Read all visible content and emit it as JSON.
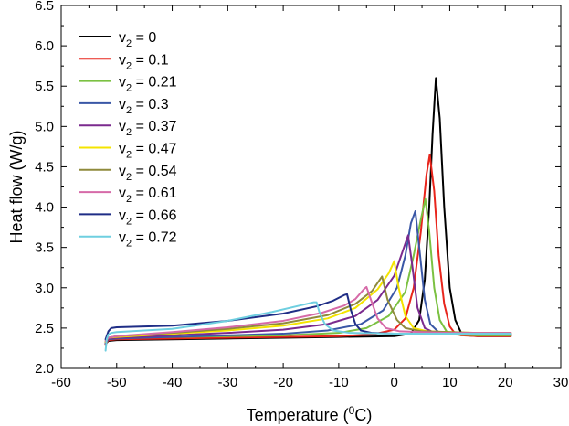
{
  "chart_data": {
    "type": "line",
    "title": "",
    "xlabel": {
      "pre": "Temperature (",
      "sup": "0",
      "post": "C)"
    },
    "ylabel": "Heat flow (W/g)",
    "xlim": [
      -60,
      30
    ],
    "ylim": [
      2.0,
      6.5
    ],
    "xticks": [
      -60,
      -50,
      -40,
      -30,
      -20,
      -10,
      0,
      10,
      20,
      30
    ],
    "yticks": [
      2.0,
      2.5,
      3.0,
      3.5,
      4.0,
      4.5,
      5.0,
      5.5,
      6.0,
      6.5
    ],
    "grid": false,
    "legend_position": "top-left",
    "series": [
      {
        "name": "v2 = 0",
        "label_main": "v",
        "label_sub": "2",
        "label_rest": " = 0",
        "color": "#000000",
        "points": [
          [
            -52,
            2.3
          ],
          [
            -51.5,
            2.34
          ],
          [
            -50,
            2.35
          ],
          [
            -40,
            2.36
          ],
          [
            -30,
            2.37
          ],
          [
            -20,
            2.38
          ],
          [
            -10,
            2.39
          ],
          [
            0,
            2.4
          ],
          [
            3,
            2.43
          ],
          [
            4.5,
            2.6
          ],
          [
            5.5,
            3.1
          ],
          [
            6.3,
            4.0
          ],
          [
            6.9,
            4.9
          ],
          [
            7.5,
            5.6
          ],
          [
            8.2,
            5.1
          ],
          [
            9,
            4.0
          ],
          [
            10,
            3.0
          ],
          [
            11,
            2.6
          ],
          [
            12,
            2.45
          ],
          [
            13,
            2.41
          ],
          [
            15,
            2.4
          ],
          [
            21,
            2.4
          ]
        ]
      },
      {
        "name": "v2 = 0.1",
        "label_main": "v",
        "label_sub": "2",
        "label_rest": " = 0.1",
        "color": "#e8251c",
        "points": [
          [
            -52,
            2.3
          ],
          [
            -51.5,
            2.35
          ],
          [
            -50,
            2.36
          ],
          [
            -40,
            2.37
          ],
          [
            -30,
            2.38
          ],
          [
            -20,
            2.39
          ],
          [
            -10,
            2.4
          ],
          [
            -4,
            2.42
          ],
          [
            0,
            2.48
          ],
          [
            2,
            2.62
          ],
          [
            3.5,
            3.0
          ],
          [
            4.8,
            3.7
          ],
          [
            5.8,
            4.4
          ],
          [
            6.4,
            4.65
          ],
          [
            7.2,
            4.2
          ],
          [
            8,
            3.4
          ],
          [
            9,
            2.8
          ],
          [
            10,
            2.52
          ],
          [
            11,
            2.43
          ],
          [
            12,
            2.41
          ],
          [
            15,
            2.4
          ],
          [
            21,
            2.4
          ]
        ]
      },
      {
        "name": "v2 = 0.21",
        "label_main": "v",
        "label_sub": "2",
        "label_rest": " = 0.21",
        "color": "#7bc142",
        "points": [
          [
            -52,
            2.32
          ],
          [
            -51.5,
            2.37
          ],
          [
            -50,
            2.38
          ],
          [
            -40,
            2.39
          ],
          [
            -30,
            2.4
          ],
          [
            -20,
            2.41
          ],
          [
            -10,
            2.44
          ],
          [
            -5,
            2.5
          ],
          [
            -1,
            2.65
          ],
          [
            2,
            2.95
          ],
          [
            3.5,
            3.4
          ],
          [
            4.8,
            3.85
          ],
          [
            5.6,
            4.1
          ],
          [
            6.3,
            3.7
          ],
          [
            7.2,
            3.0
          ],
          [
            8.2,
            2.6
          ],
          [
            9.5,
            2.45
          ],
          [
            11,
            2.42
          ],
          [
            15,
            2.41
          ],
          [
            21,
            2.41
          ]
        ]
      },
      {
        "name": "v2 = 0.3",
        "label_main": "v",
        "label_sub": "2",
        "label_rest": " = 0.3",
        "color": "#3a57a6",
        "points": [
          [
            -52,
            2.31
          ],
          [
            -51.5,
            2.36
          ],
          [
            -50,
            2.37
          ],
          [
            -40,
            2.39
          ],
          [
            -30,
            2.41
          ],
          [
            -20,
            2.43
          ],
          [
            -12,
            2.47
          ],
          [
            -6,
            2.55
          ],
          [
            -2,
            2.72
          ],
          [
            0.5,
            3.0
          ],
          [
            2,
            3.4
          ],
          [
            3,
            3.8
          ],
          [
            3.8,
            3.95
          ],
          [
            4.5,
            3.5
          ],
          [
            5.5,
            2.85
          ],
          [
            6.5,
            2.55
          ],
          [
            8,
            2.45
          ],
          [
            10,
            2.43
          ],
          [
            15,
            2.42
          ],
          [
            21,
            2.42
          ]
        ]
      },
      {
        "name": "v2 = 0.37",
        "label_main": "v",
        "label_sub": "2",
        "label_rest": " = 0.37",
        "color": "#7b2a8e",
        "points": [
          [
            -52,
            2.32
          ],
          [
            -51.5,
            2.37
          ],
          [
            -50,
            2.38
          ],
          [
            -40,
            2.41
          ],
          [
            -30,
            2.44
          ],
          [
            -20,
            2.48
          ],
          [
            -12,
            2.55
          ],
          [
            -7,
            2.65
          ],
          [
            -3,
            2.85
          ],
          [
            0,
            3.15
          ],
          [
            1.5,
            3.45
          ],
          [
            2.5,
            3.65
          ],
          [
            3.2,
            3.3
          ],
          [
            4.2,
            2.75
          ],
          [
            5.5,
            2.5
          ],
          [
            7,
            2.45
          ],
          [
            10,
            2.43
          ],
          [
            15,
            2.43
          ],
          [
            21,
            2.43
          ]
        ]
      },
      {
        "name": "v2 = 0.47",
        "label_main": "v",
        "label_sub": "2",
        "label_rest": " = 0.47",
        "color": "#f4e400",
        "points": [
          [
            -52,
            2.33
          ],
          [
            -51.5,
            2.38
          ],
          [
            -50,
            2.39
          ],
          [
            -40,
            2.43
          ],
          [
            -30,
            2.47
          ],
          [
            -20,
            2.53
          ],
          [
            -12,
            2.62
          ],
          [
            -7,
            2.75
          ],
          [
            -3,
            2.98
          ],
          [
            -1,
            3.18
          ],
          [
            0,
            3.33
          ],
          [
            0.8,
            3.0
          ],
          [
            2,
            2.65
          ],
          [
            3.5,
            2.5
          ],
          [
            6,
            2.46
          ],
          [
            10,
            2.45
          ],
          [
            15,
            2.44
          ],
          [
            21,
            2.44
          ]
        ]
      },
      {
        "name": "v2 = 0.54",
        "label_main": "v",
        "label_sub": "2",
        "label_rest": " = 0.54",
        "color": "#8f8a3c",
        "points": [
          [
            -52,
            2.34
          ],
          [
            -51.5,
            2.38
          ],
          [
            -50,
            2.4
          ],
          [
            -40,
            2.44
          ],
          [
            -30,
            2.49
          ],
          [
            -20,
            2.56
          ],
          [
            -12,
            2.66
          ],
          [
            -7,
            2.8
          ],
          [
            -4,
            2.96
          ],
          [
            -2.2,
            3.14
          ],
          [
            -1.2,
            2.85
          ],
          [
            0.5,
            2.6
          ],
          [
            2,
            2.5
          ],
          [
            5,
            2.46
          ],
          [
            10,
            2.45
          ],
          [
            15,
            2.44
          ],
          [
            21,
            2.44
          ]
        ]
      },
      {
        "name": "v2 = 0.61",
        "label_main": "v",
        "label_sub": "2",
        "label_rest": " = 0.61",
        "color": "#d66aa8",
        "points": [
          [
            -52,
            2.34
          ],
          [
            -51.5,
            2.38
          ],
          [
            -50,
            2.4
          ],
          [
            -40,
            2.45
          ],
          [
            -30,
            2.51
          ],
          [
            -20,
            2.59
          ],
          [
            -13,
            2.69
          ],
          [
            -9,
            2.78
          ],
          [
            -7,
            2.86
          ],
          [
            -5.5,
            2.98
          ],
          [
            -5,
            3.01
          ],
          [
            -4.2,
            2.85
          ],
          [
            -3,
            2.62
          ],
          [
            -1.5,
            2.5
          ],
          [
            1,
            2.46
          ],
          [
            5,
            2.45
          ],
          [
            10,
            2.44
          ],
          [
            15,
            2.44
          ],
          [
            21,
            2.44
          ]
        ]
      },
      {
        "name": "v2 = 0.66",
        "label_main": "v",
        "label_sub": "2",
        "label_rest": " = 0.66",
        "color": "#1f2d86",
        "points": [
          [
            -52,
            2.36
          ],
          [
            -51.5,
            2.46
          ],
          [
            -51,
            2.5
          ],
          [
            -50,
            2.51
          ],
          [
            -40,
            2.53
          ],
          [
            -30,
            2.59
          ],
          [
            -20,
            2.68
          ],
          [
            -14,
            2.77
          ],
          [
            -11,
            2.84
          ],
          [
            -9,
            2.91
          ],
          [
            -8.5,
            2.92
          ],
          [
            -7.8,
            2.72
          ],
          [
            -7,
            2.55
          ],
          [
            -6,
            2.47
          ],
          [
            -4,
            2.44
          ],
          [
            0,
            2.43
          ],
          [
            5,
            2.42
          ],
          [
            10,
            2.42
          ],
          [
            15,
            2.42
          ],
          [
            21,
            2.42
          ]
        ]
      },
      {
        "name": "v2 = 0.72",
        "label_main": "v",
        "label_sub": "2",
        "label_rest": " = 0.72",
        "color": "#6fcfe0",
        "points": [
          [
            -52,
            2.22
          ],
          [
            -51.8,
            2.36
          ],
          [
            -51.5,
            2.42
          ],
          [
            -51,
            2.44
          ],
          [
            -50,
            2.45
          ],
          [
            -40,
            2.49
          ],
          [
            -30,
            2.59
          ],
          [
            -22,
            2.7
          ],
          [
            -17,
            2.78
          ],
          [
            -14.5,
            2.82
          ],
          [
            -14,
            2.82
          ],
          [
            -13.5,
            2.7
          ],
          [
            -12.5,
            2.55
          ],
          [
            -11,
            2.47
          ],
          [
            -8,
            2.44
          ],
          [
            0,
            2.43
          ],
          [
            5,
            2.43
          ],
          [
            10,
            2.43
          ],
          [
            15,
            2.43
          ],
          [
            21,
            2.43
          ]
        ]
      }
    ]
  }
}
